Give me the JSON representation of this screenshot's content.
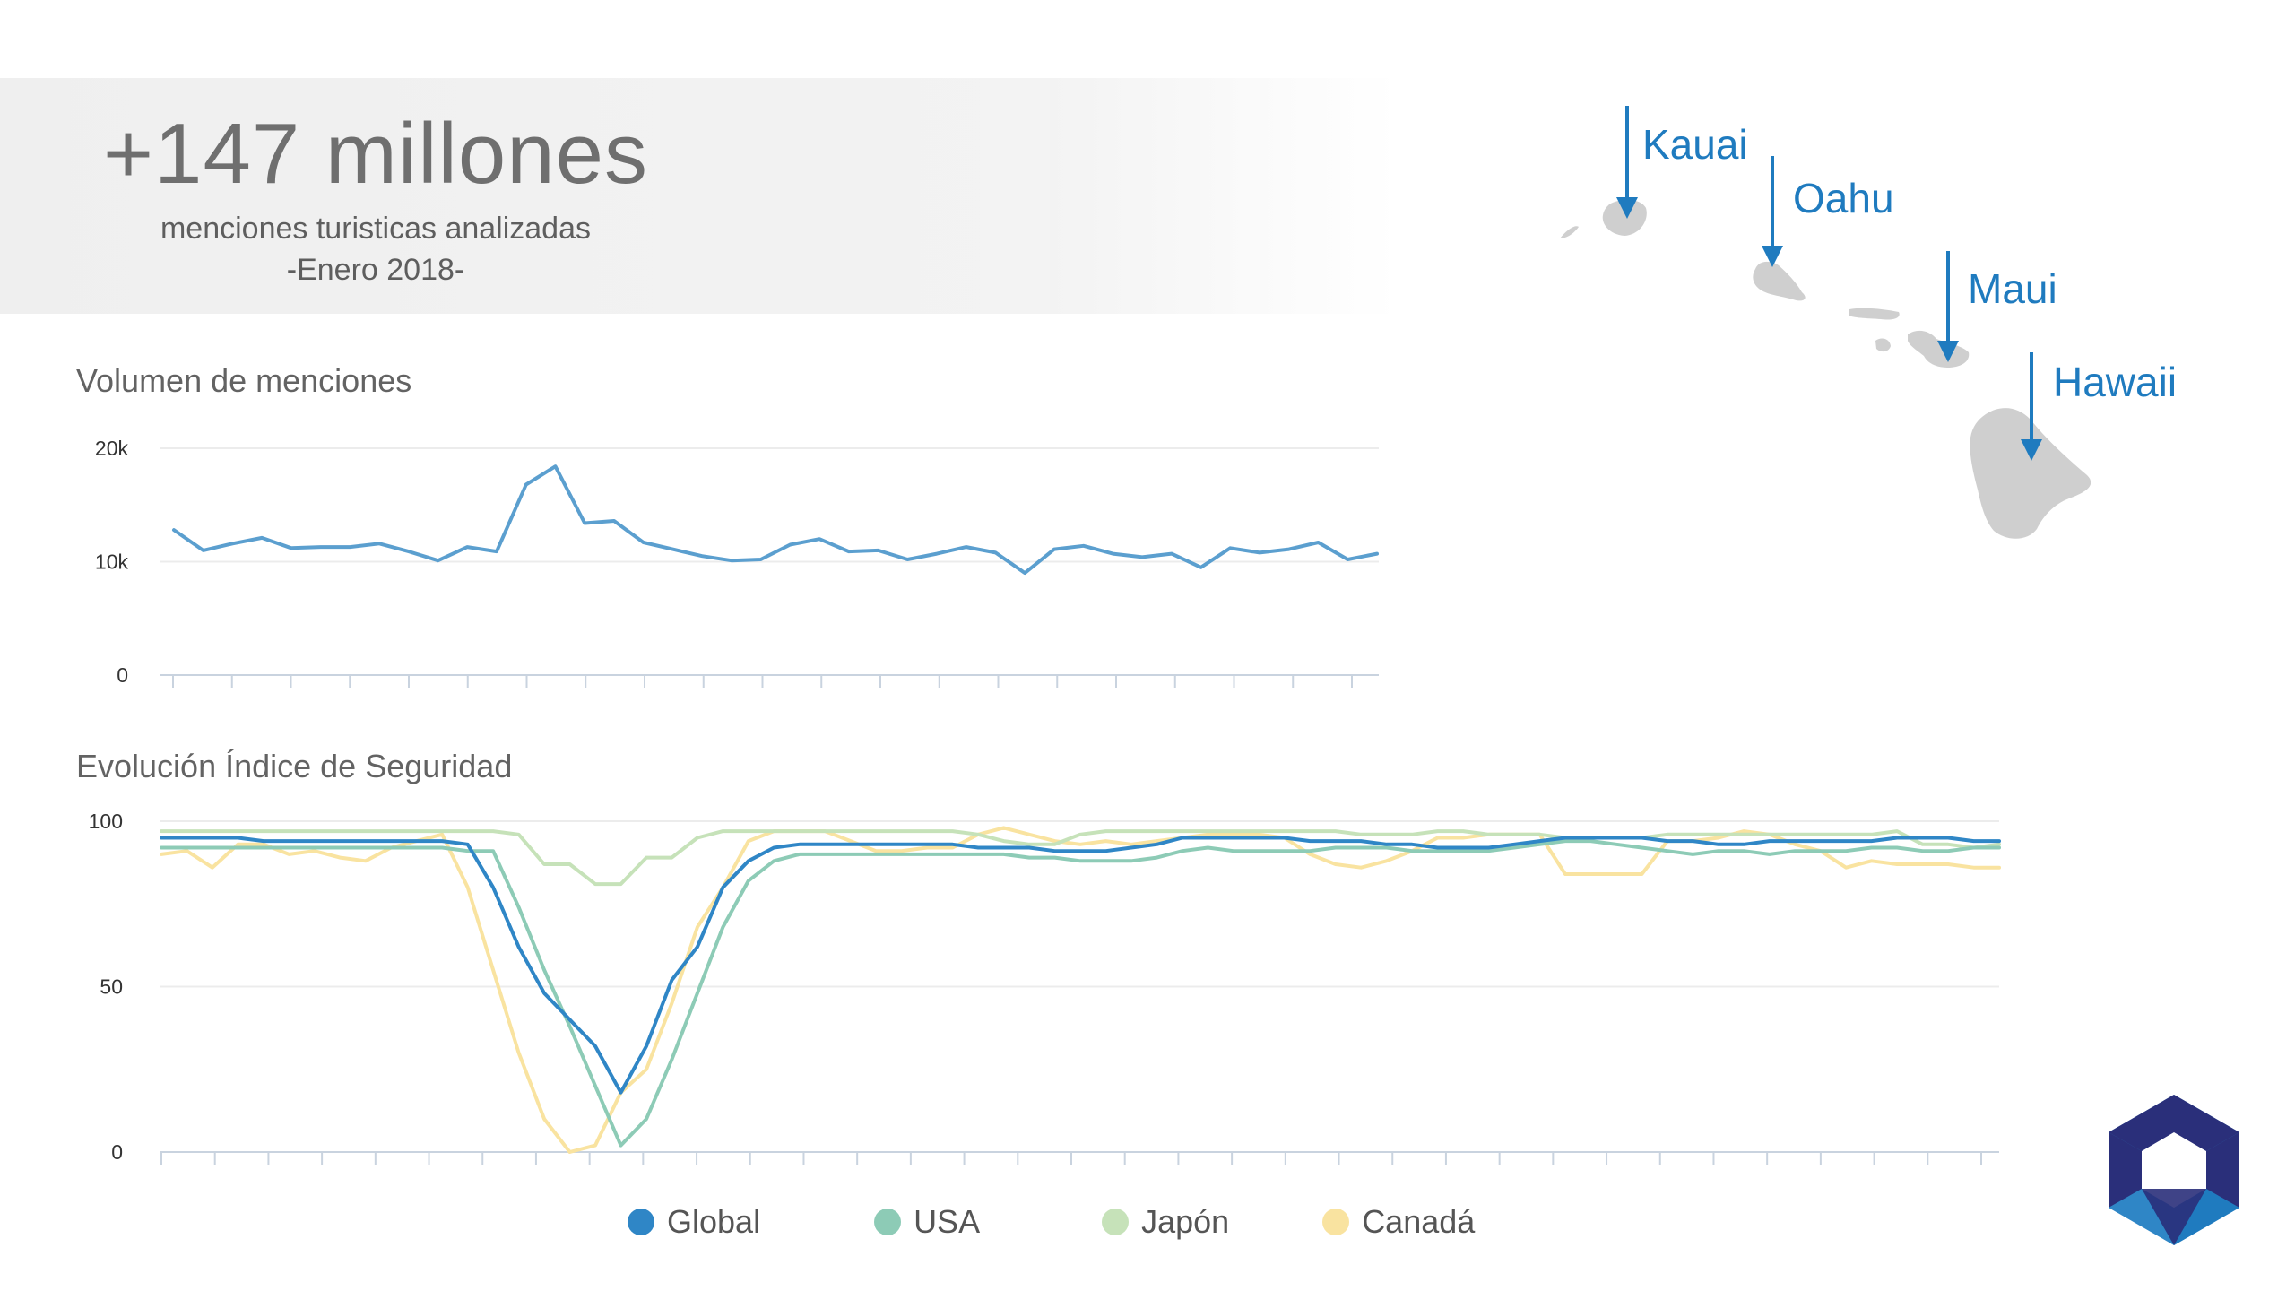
{
  "header": {
    "headline": "+147 millones",
    "subtitle": "menciones turisticas analizadas",
    "period": "-Enero 2018-"
  },
  "colors": {
    "global": "#2f86c6",
    "usa": "#8dcbb6",
    "japon": "#c6e2b9",
    "canada": "#f9e3a0",
    "volume_line": "#5b9fcf",
    "map_label": "#1f7bbf",
    "island": "#cfcfcf"
  },
  "islands": [
    {
      "name": "Kauai"
    },
    {
      "name": "Oahu"
    },
    {
      "name": "Maui"
    },
    {
      "name": "Hawaii"
    }
  ],
  "legend": [
    {
      "label": "Global",
      "color": "#2f86c6"
    },
    {
      "label": "USA",
      "color": "#8dcbb6"
    },
    {
      "label": "Japón",
      "color": "#c6e2b9"
    },
    {
      "label": "Canadá",
      "color": "#f9e3a0"
    }
  ],
  "chart_data": [
    {
      "type": "line",
      "title": "Volumen de menciones",
      "ylim": [
        0,
        20000
      ],
      "yticks": [
        {
          "value": 0,
          "label": "0"
        },
        {
          "value": 10000,
          "label": "10k"
        },
        {
          "value": 20000,
          "label": "20k"
        }
      ],
      "grid": true,
      "series": [
        {
          "values": [
            12800,
            11000,
            11600,
            12100,
            11200,
            11300,
            11300,
            11600,
            10900,
            10100,
            11300,
            10900,
            16800,
            18400,
            13400,
            13600,
            11700,
            11100,
            10500,
            10100,
            10200,
            11500,
            12000,
            10900,
            11000,
            10200,
            10700,
            11300,
            10800,
            9000,
            11100,
            11400,
            10700,
            10400,
            10700,
            9500,
            11200,
            10800,
            11100,
            11700,
            10200,
            10700
          ]
        }
      ]
    },
    {
      "type": "line",
      "title": "Evolución Índice de Seguridad",
      "ylim": [
        0,
        100
      ],
      "yticks": [
        {
          "value": 0,
          "label": "0"
        },
        {
          "value": 50,
          "label": "50"
        },
        {
          "value": 100,
          "label": "100"
        }
      ],
      "grid": true,
      "legend_position": "bottom",
      "series": [
        {
          "name": "Global",
          "values": [
            95,
            95,
            95,
            95,
            94,
            94,
            94,
            94,
            94,
            94,
            94,
            94,
            93,
            80,
            62,
            48,
            40,
            32,
            18,
            32,
            52,
            62,
            80,
            88,
            92,
            93,
            93,
            93,
            93,
            93,
            93,
            93,
            92,
            92,
            92,
            91,
            91,
            91,
            92,
            93,
            95,
            95,
            95,
            95,
            95,
            94,
            94,
            94,
            93,
            93,
            92,
            92,
            92,
            93,
            94,
            95,
            95,
            95,
            95,
            94,
            94,
            93,
            93,
            94,
            94,
            94,
            94,
            94,
            95,
            95,
            95,
            94,
            94
          ]
        },
        {
          "name": "USA",
          "values": [
            92,
            92,
            92,
            92,
            92,
            92,
            92,
            92,
            92,
            92,
            92,
            92,
            91,
            91,
            74,
            55,
            38,
            20,
            2,
            10,
            28,
            48,
            68,
            82,
            88,
            90,
            90,
            90,
            90,
            90,
            90,
            90,
            90,
            90,
            89,
            89,
            88,
            88,
            88,
            89,
            91,
            92,
            91,
            91,
            91,
            91,
            92,
            92,
            92,
            91,
            91,
            91,
            91,
            92,
            93,
            94,
            94,
            93,
            92,
            91,
            90,
            91,
            91,
            90,
            91,
            91,
            91,
            92,
            92,
            91,
            91,
            92,
            92
          ]
        },
        {
          "name": "Japón",
          "values": [
            97,
            97,
            97,
            97,
            97,
            97,
            97,
            97,
            97,
            97,
            97,
            97,
            97,
            97,
            96,
            87,
            87,
            81,
            81,
            89,
            89,
            95,
            97,
            97,
            97,
            97,
            97,
            97,
            97,
            97,
            97,
            97,
            96,
            94,
            93,
            93,
            96,
            97,
            97,
            97,
            97,
            97,
            97,
            97,
            97,
            97,
            97,
            96,
            96,
            96,
            97,
            97,
            96,
            96,
            96,
            95,
            95,
            95,
            95,
            96,
            96,
            96,
            96,
            96,
            96,
            96,
            96,
            96,
            97,
            93,
            93,
            92,
            93
          ]
        },
        {
          "name": "Canadá",
          "values": [
            90,
            91,
            86,
            93,
            93,
            90,
            91,
            89,
            88,
            92,
            94,
            96,
            80,
            55,
            30,
            10,
            0,
            2,
            18,
            25,
            45,
            68,
            80,
            94,
            97,
            97,
            97,
            94,
            91,
            91,
            92,
            92,
            96,
            98,
            96,
            94,
            93,
            94,
            93,
            94,
            95,
            96,
            96,
            96,
            95,
            90,
            87,
            86,
            88,
            91,
            95,
            95,
            96,
            96,
            96,
            84,
            84,
            84,
            84,
            94,
            94,
            95,
            97,
            96,
            93,
            91,
            86,
            88,
            87,
            87,
            87,
            86,
            86
          ]
        }
      ]
    }
  ]
}
